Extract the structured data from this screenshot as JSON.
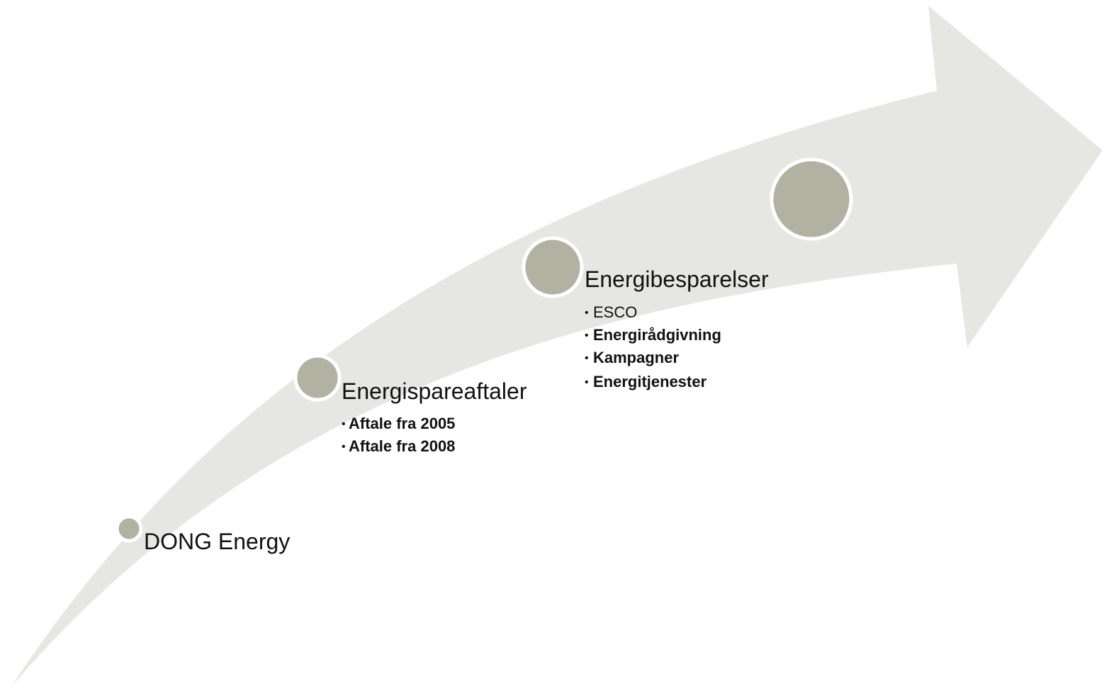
{
  "steps": [
    {
      "title": "DONG Energy"
    },
    {
      "title": "Energispareaftaler",
      "items": [
        "Aftale fra 2005",
        "Aftale fra 2008"
      ]
    },
    {
      "title": "Energibesparelser",
      "items": [
        "ESCO",
        "Energirådgivning",
        "Kampagner",
        "Energitjenester"
      ]
    }
  ]
}
